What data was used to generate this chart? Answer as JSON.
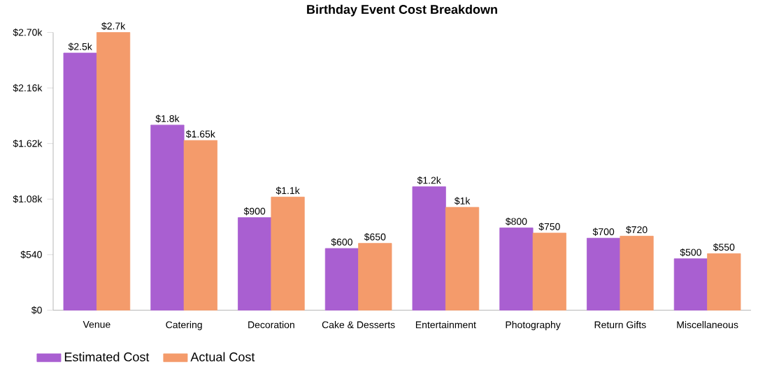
{
  "chart_data": {
    "type": "bar",
    "title": "Birthday Event Cost Breakdown",
    "categories": [
      "Venue",
      "Catering",
      "Decoration",
      "Cake & Desserts",
      "Entertainment",
      "Photography",
      "Return Gifts",
      "Miscellaneous"
    ],
    "series": [
      {
        "name": "Estimated Cost",
        "color": "#a95fd1",
        "values": [
          2500,
          1800,
          900,
          600,
          1200,
          800,
          700,
          500
        ],
        "value_labels": [
          "$2.5k",
          "$1.8k",
          "$900",
          "$600",
          "$1.2k",
          "$800",
          "$700",
          "$500"
        ]
      },
      {
        "name": "Actual Cost",
        "color": "#f49b6b",
        "values": [
          2700,
          1650,
          1100,
          650,
          1000,
          750,
          720,
          550
        ],
        "value_labels": [
          "$2.7k",
          "$1.65k",
          "$1.1k",
          "$650",
          "$1k",
          "$750",
          "$720",
          "$550"
        ]
      }
    ],
    "ylim": [
      0,
      2700
    ],
    "yticks": [
      {
        "value": 0,
        "label": "$0"
      },
      {
        "value": 540,
        "label": "$540"
      },
      {
        "value": 1080,
        "label": "$1.08k"
      },
      {
        "value": 1620,
        "label": "$1.62k"
      },
      {
        "value": 2160,
        "label": "$2.16k"
      },
      {
        "value": 2700,
        "label": "$2.70k"
      }
    ],
    "grid": false,
    "legend": "bottom left"
  }
}
